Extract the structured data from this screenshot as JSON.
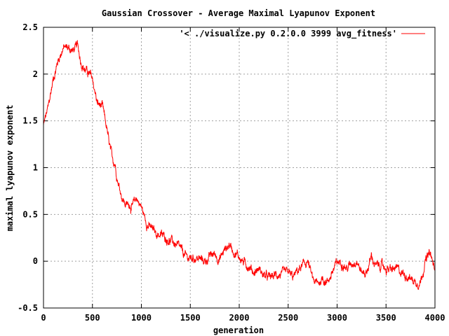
{
  "chart_data": {
    "type": "line",
    "title": "Gaussian Crossover - Average Maximal Lyapunov Exponent",
    "xlabel": "generation",
    "ylabel": "maximal lyapunov exponent",
    "xlim": [
      0,
      4000
    ],
    "ylim": [
      -0.5,
      2.5
    ],
    "xticks": [
      0,
      500,
      1000,
      1500,
      2000,
      2500,
      3000,
      3500,
      4000
    ],
    "xtick_labels": [
      "0",
      "500",
      "1000",
      "1500",
      "2000",
      "2500",
      "3000",
      "3500",
      "4000"
    ],
    "yticks": [
      -0.5,
      0,
      0.5,
      1,
      1.5,
      2,
      2.5
    ],
    "ytick_labels": [
      "-0.5",
      "0",
      "0.5",
      "1",
      "1.5",
      "2",
      "2.5"
    ],
    "grid": true,
    "legend_position": "top-right",
    "series": [
      {
        "name": "'< ./visualize.py 0.2.0.0 3999 avg_fitness'",
        "color": "#ff0000",
        "x": [
          0,
          50,
          100,
          150,
          200,
          250,
          300,
          350,
          380,
          420,
          450,
          500,
          550,
          570,
          600,
          630,
          650,
          670,
          700,
          730,
          750,
          770,
          800,
          830,
          850,
          880,
          900,
          930,
          950,
          970,
          1000,
          1030,
          1060,
          1080,
          1100,
          1150,
          1200,
          1250,
          1300,
          1350,
          1400,
          1450,
          1500,
          1550,
          1600,
          1650,
          1700,
          1750,
          1800,
          1850,
          1900,
          1950,
          2000,
          2050,
          2100,
          2150,
          2200,
          2250,
          2300,
          2350,
          2400,
          2450,
          2500,
          2550,
          2600,
          2650,
          2700,
          2750,
          2800,
          2850,
          2900,
          2950,
          3000,
          3050,
          3100,
          3150,
          3200,
          3250,
          3300,
          3350,
          3400,
          3450,
          3500,
          3550,
          3600,
          3650,
          3700,
          3750,
          3800,
          3850,
          3900,
          3950,
          3999
        ],
        "y": [
          1.45,
          1.65,
          1.95,
          2.15,
          2.28,
          2.28,
          2.25,
          2.3,
          2.15,
          2.05,
          2.02,
          1.95,
          1.68,
          1.67,
          1.65,
          1.5,
          1.4,
          1.25,
          1.1,
          1.05,
          0.92,
          0.82,
          0.7,
          0.62,
          0.6,
          0.62,
          0.58,
          0.62,
          0.68,
          0.64,
          0.58,
          0.48,
          0.4,
          0.37,
          0.35,
          0.3,
          0.28,
          0.25,
          0.22,
          0.18,
          0.12,
          0.05,
          0.03,
          0.04,
          0.02,
          0.0,
          0.05,
          0.08,
          0.02,
          0.12,
          0.18,
          0.1,
          0.05,
          -0.02,
          -0.05,
          -0.12,
          -0.08,
          -0.15,
          -0.18,
          -0.16,
          -0.14,
          -0.15,
          -0.12,
          -0.18,
          -0.1,
          -0.05,
          0.0,
          -0.2,
          -0.25,
          -0.18,
          -0.22,
          -0.12,
          -0.02,
          0.0,
          -0.08,
          -0.02,
          0.02,
          -0.12,
          -0.12,
          0.05,
          -0.06,
          -0.04,
          -0.08,
          -0.1,
          -0.08,
          -0.12,
          -0.14,
          -0.18,
          -0.22,
          -0.22,
          0.0,
          0.08,
          -0.1
        ]
      }
    ]
  }
}
